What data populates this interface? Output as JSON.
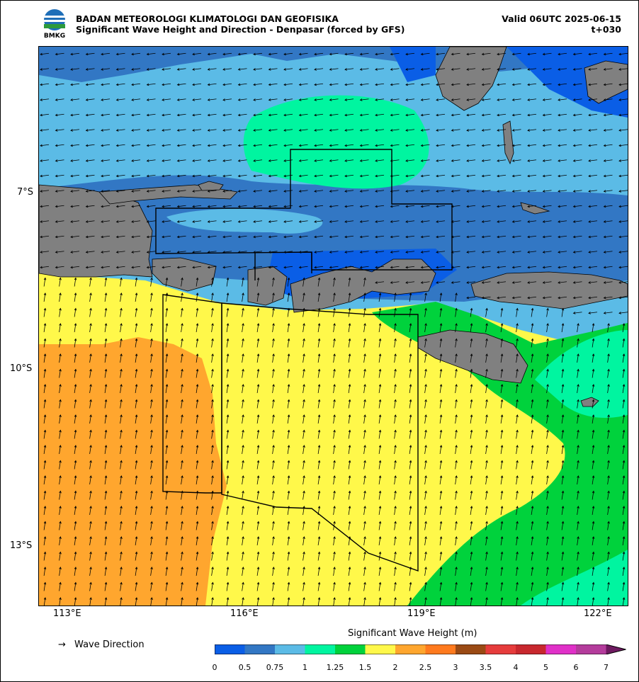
{
  "header": {
    "agency": "BADAN METEOROLOGI KLIMATOLOGI DAN GEOFISIKA",
    "subtitle": "Significant Wave Height and Direction - Denpasar (forced by GFS)",
    "valid": "Valid 06UTC 2025-06-15",
    "lead": "t+030",
    "logo_text": "BMKG"
  },
  "axes": {
    "lat_labels": [
      "7°S",
      "10°S",
      "13°S"
    ],
    "lon_labels": [
      "113°E",
      "116°E",
      "119°E",
      "122°E"
    ]
  },
  "legend": {
    "direction_symbol": "→",
    "direction_label": "Wave Direction",
    "colorbar_title": "Significant Wave Height (m)",
    "ticks": [
      "0",
      "0.5",
      "0.75",
      "1",
      "1.25",
      "1.5",
      "2",
      "2.5",
      "3",
      "3.5",
      "4",
      "5",
      "6",
      "7"
    ],
    "colors": [
      "#0a5ee6",
      "#3277c4",
      "#5bbbe6",
      "#00f5a0",
      "#00d23c",
      "#fff84a",
      "#ffa62e",
      "#ff7a1e",
      "#9a4a14",
      "#e63c3c",
      "#c8282e",
      "#e030c8",
      "#b43c9c",
      "#6e1a60"
    ]
  },
  "map": {
    "land_color": "#808080",
    "wave_direction": "westward in northern seas, northward south of the islands"
  }
}
